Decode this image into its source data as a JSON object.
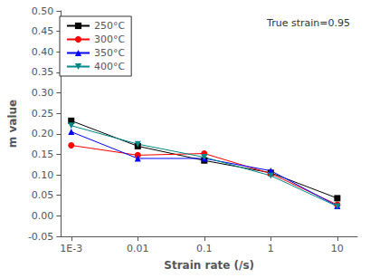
{
  "chart_data": {
    "type": "line",
    "x": [
      0.001,
      0.01,
      0.1,
      1,
      10
    ],
    "series": [
      {
        "name": "250°C",
        "color": "black",
        "marker": "square",
        "values": [
          0.232,
          0.17,
          0.135,
          0.105,
          0.043
        ]
      },
      {
        "name": "300°C",
        "color": "red",
        "marker": "circle",
        "values": [
          0.172,
          0.148,
          0.152,
          0.103,
          0.027
        ]
      },
      {
        "name": "350°C",
        "color": "blue",
        "marker": "triangle",
        "values": [
          0.205,
          0.14,
          0.14,
          0.11,
          0.024
        ]
      },
      {
        "name": "400°C",
        "color": "#008888",
        "marker": "triangle_down",
        "values": [
          0.22,
          0.175,
          0.143,
          0.098,
          0.023
        ]
      }
    ],
    "xlabel": "Strain rate (/s)",
    "ylabel": "m value",
    "log": "x",
    "xlim": [
      0.0007,
      20
    ],
    "xticks": [
      {
        "value": 0.001,
        "label": "1E-3"
      },
      0.01,
      0.1,
      1,
      10
    ],
    "ylim": [
      -0.05,
      0.5
    ],
    "yticks": [
      -0.05,
      {
        "value": 0.0,
        "label": "0.00"
      },
      0.05,
      {
        "value": 0.1,
        "label": "0.10"
      },
      0.15,
      {
        "value": 0.2,
        "label": "0.20"
      },
      0.25,
      {
        "value": 0.3,
        "label": "0.30"
      },
      0.35,
      {
        "value": 0.4,
        "label": "0.40"
      },
      0.45,
      {
        "value": 0.5,
        "label": "0.50"
      }
    ],
    "grid": false,
    "legend": "upper left",
    "annotation": "True strain=0.95"
  }
}
